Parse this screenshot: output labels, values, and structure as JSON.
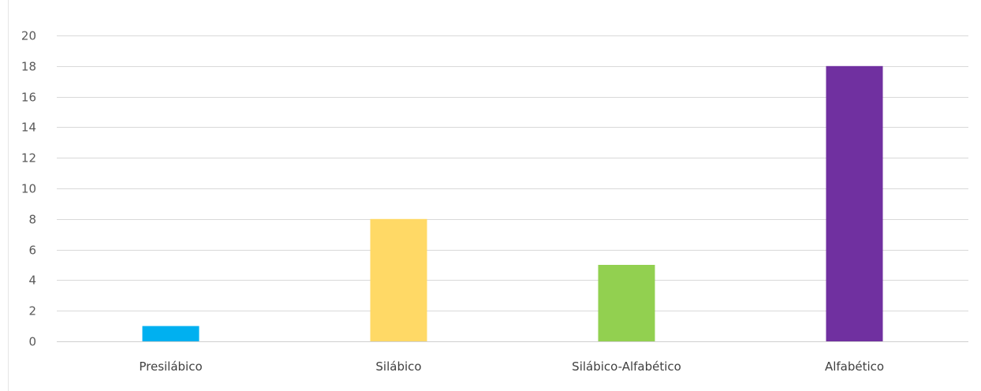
{
  "chart_data": {
    "type": "bar",
    "categories": [
      "Presilábico",
      "Silábico",
      "Silábico-Alfabético",
      "Alfabético"
    ],
    "values": [
      1,
      8,
      5,
      18
    ],
    "colors": [
      "#00b0f0",
      "#ffd966",
      "#92d050",
      "#7030a0"
    ],
    "ylim": [
      0,
      20
    ],
    "yticks": [
      0,
      2,
      4,
      6,
      8,
      10,
      12,
      14,
      16,
      18,
      20
    ],
    "grid": true,
    "legend": "none"
  }
}
